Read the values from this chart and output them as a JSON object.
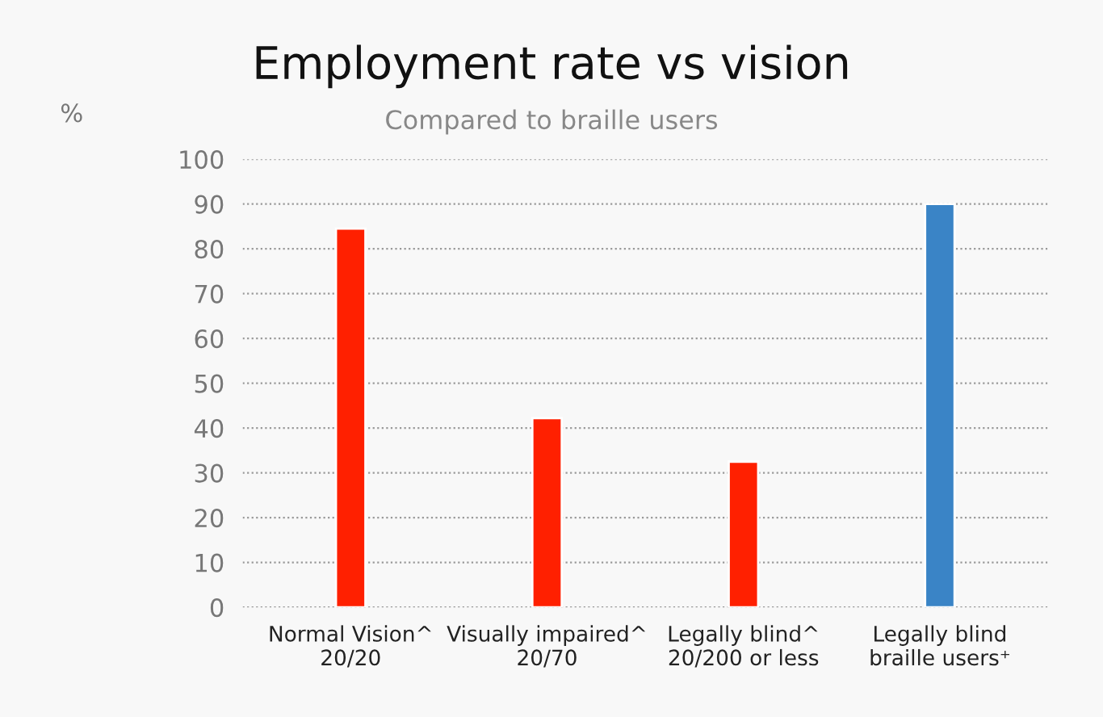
{
  "chart_data": {
    "type": "bar",
    "title": "Employment rate vs vision",
    "subtitle": "Compared to braille users",
    "ylabel": "%",
    "categories": [
      "Normal Vision^\n20/20",
      "Visually impaired^\n20/70",
      "Legally blind^\n20/200 or less",
      "Legally blind\nbraille users⁺"
    ],
    "values": [
      84.5,
      42.2,
      32.5,
      90
    ],
    "colors": [
      "#ff2000",
      "#ff2000",
      "#ff2000",
      "#3a84c6"
    ],
    "ylim": [
      0,
      100
    ],
    "yticks": [
      0,
      10,
      20,
      30,
      40,
      50,
      60,
      70,
      80,
      90,
      100
    ],
    "grid": "y",
    "legend": false
  }
}
